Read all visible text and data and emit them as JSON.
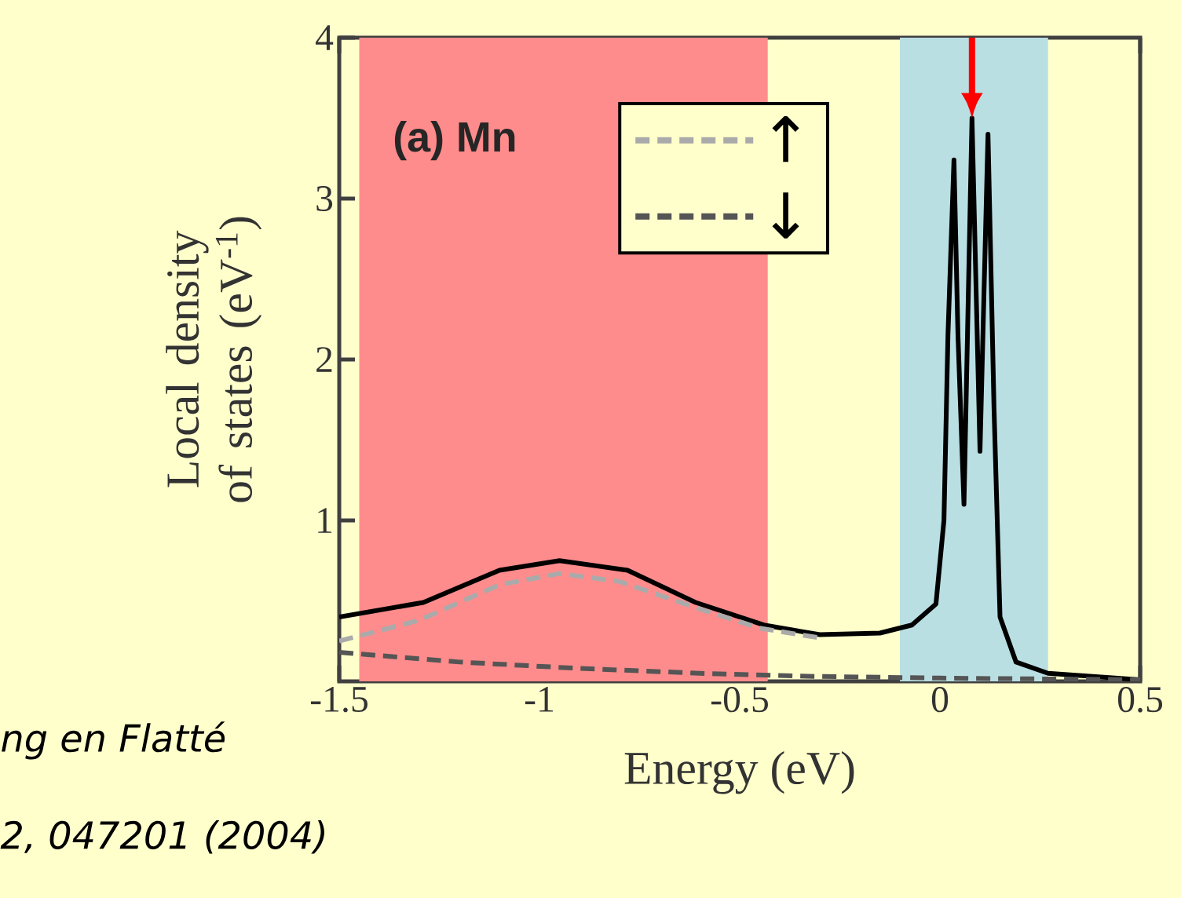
{
  "chart_data": {
    "type": "line",
    "title": "(a) Mn",
    "xlabel": "Energy (eV)",
    "ylabel": "Local density of states (eV$^{-1}$)",
    "xlim": [
      -1.5,
      0.5
    ],
    "ylim": [
      0,
      4
    ],
    "xticks": [
      -1.5,
      -1,
      -0.5,
      0,
      0.5
    ],
    "yticks": [
      1,
      2,
      3,
      4
    ],
    "legend": "top",
    "series": [
      {
        "color": "#000000",
        "line_style": "solid",
        "x": [
          -1.5,
          -1.29,
          -1.1,
          -0.95,
          -0.78,
          -0.61,
          -0.44,
          -0.3,
          -0.15,
          -0.07,
          -0.01,
          0.01,
          0.02,
          0.035,
          0.045,
          0.06,
          0.08,
          0.1,
          0.12,
          0.135,
          0.15,
          0.19,
          0.27,
          0.5
        ],
        "values": [
          0.4,
          0.49,
          0.69,
          0.75,
          0.69,
          0.49,
          0.35,
          0.29,
          0.3,
          0.35,
          0.48,
          1.0,
          2.15,
          3.24,
          2.15,
          1.1,
          3.5,
          1.43,
          3.4,
          1.7,
          0.4,
          0.12,
          0.05,
          0.01
        ]
      },
      {
        "name": "↑",
        "color": "#aaaaaa",
        "line_style": "dashed",
        "x": [
          -1.5,
          -1.3,
          -1.1,
          -0.95,
          -0.8,
          -0.6,
          -0.45,
          -0.3
        ],
        "values": [
          0.25,
          0.38,
          0.6,
          0.67,
          0.62,
          0.45,
          0.33,
          0.27
        ]
      },
      {
        "name": "↓",
        "color": "#555555",
        "line_style": "dashed",
        "x": [
          -1.5,
          -1.2,
          -0.9,
          -0.6,
          -0.3,
          0,
          0.5
        ],
        "values": [
          0.18,
          0.12,
          0.08,
          0.05,
          0.03,
          0.02,
          0.01
        ]
      }
    ],
    "bands": [
      {
        "axis": "x",
        "from": -1.45,
        "to": -0.43,
        "color": "#ff8c8c"
      },
      {
        "axis": "x",
        "from": -0.1,
        "to": 0.27,
        "color": "#b9dfe3"
      }
    ],
    "annotations": [
      "ng en Flatté",
      "2, 047201 (2004)"
    ]
  }
}
